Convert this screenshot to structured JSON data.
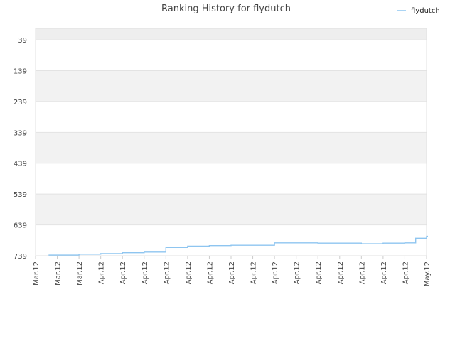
{
  "chart_data": {
    "type": "line",
    "title": "Ranking History for flydutch",
    "xlabel": "",
    "ylabel": "",
    "y_inverted": true,
    "ylim": [
      739,
      2
    ],
    "y_ticks": [
      39,
      139,
      239,
      339,
      439,
      539,
      639,
      739
    ],
    "x_ticks": [
      "Mar.12",
      "Mar.12",
      "Mar.12",
      "Apr.12",
      "Apr.12",
      "Apr.12",
      "Apr.12",
      "Apr.12",
      "Apr.12",
      "Apr.12",
      "Apr.12",
      "Apr.12",
      "Apr.12",
      "Apr.12",
      "Apr.12",
      "Apr.12",
      "Apr.12",
      "Apr.12",
      "May.12"
    ],
    "grid": true,
    "legend": {
      "position": "top-right",
      "entries": [
        "flydutch"
      ]
    },
    "colors": {
      "series": "#8ec5f0",
      "band": "#f2f2f2",
      "grid": "#e3e3e3"
    },
    "series": [
      {
        "name": "flydutch",
        "x": [
          0.6,
          2,
          3,
          4,
          5,
          6,
          7,
          8,
          9,
          10,
          11,
          12,
          13,
          14,
          15,
          16,
          17,
          17.5,
          18
        ],
        "y": [
          737,
          734,
          732,
          729,
          727,
          712,
          708,
          706,
          705,
          705,
          697,
          697,
          698,
          698,
          700,
          698,
          697,
          682,
          676
        ]
      }
    ]
  }
}
